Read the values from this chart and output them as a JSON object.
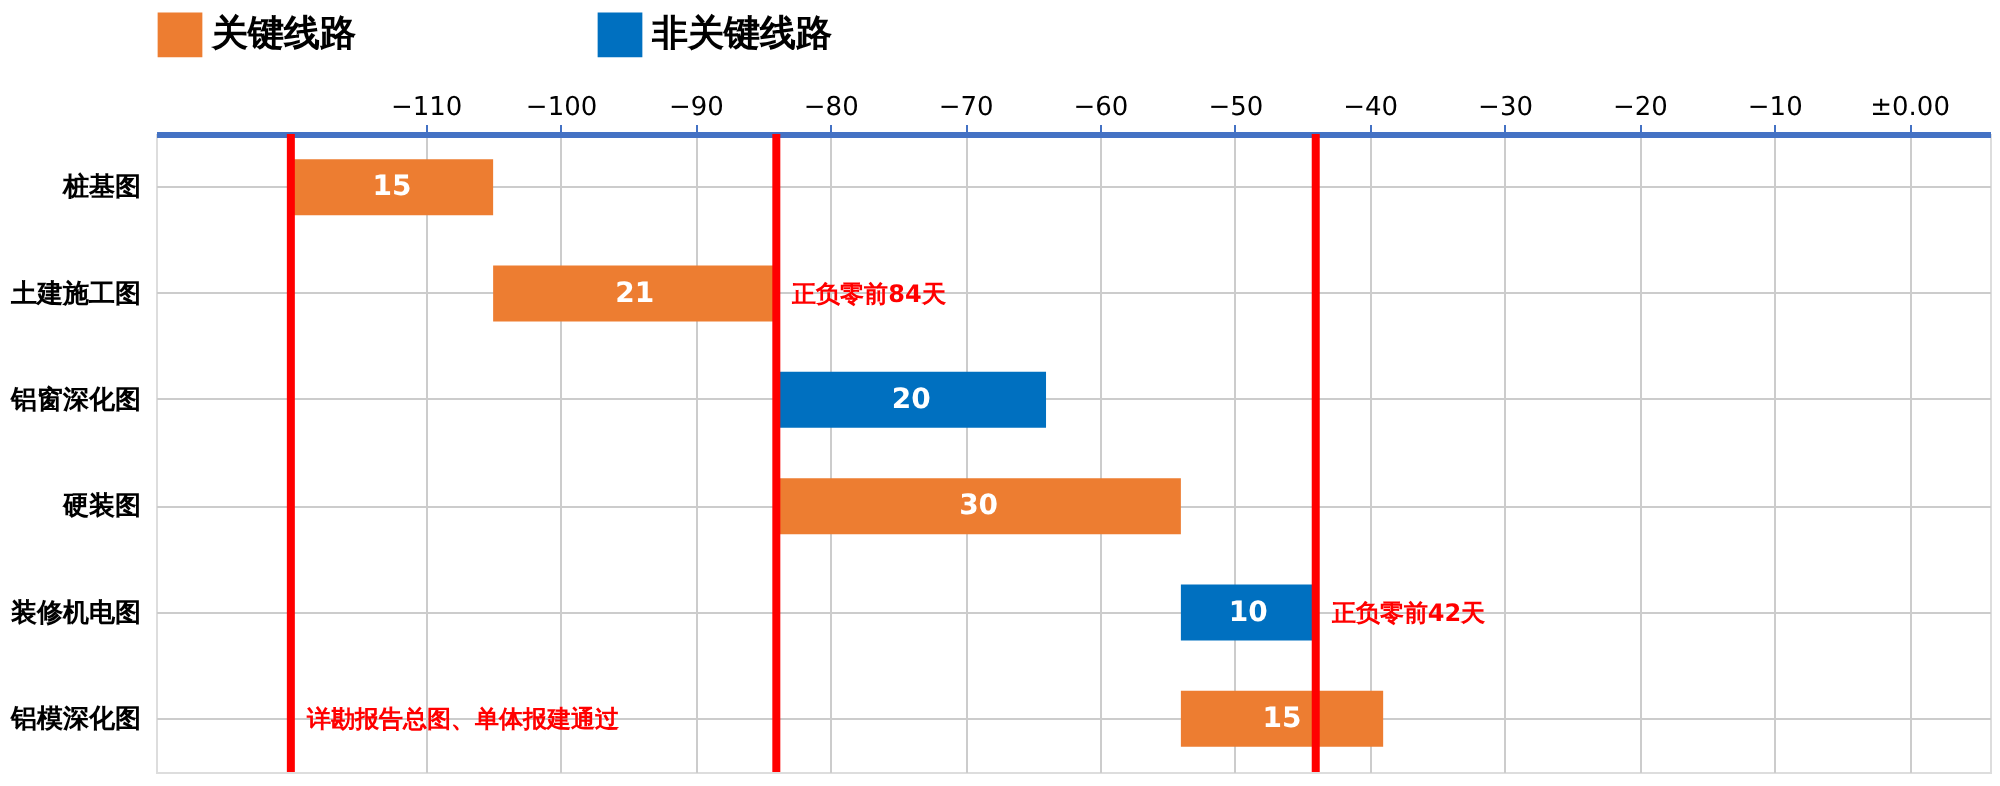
{
  "chart_data": {
    "type": "bar",
    "orientation": "horizontal",
    "categories": [
      "桩基图",
      "土建施工图",
      "铝窗深化图",
      "硬装图",
      "装修机电图",
      "铝模深化图"
    ],
    "series": [
      {
        "name": "关键线路",
        "color": "#ed7d31",
        "values": [
          15,
          21,
          null,
          30,
          null,
          15
        ],
        "base": [
          -120,
          -105,
          null,
          -84,
          null,
          -54
        ]
      },
      {
        "name": "非关键线路",
        "color": "#0070c0",
        "values": [
          null,
          null,
          20,
          null,
          10,
          null
        ],
        "base": [
          null,
          null,
          -84,
          null,
          -54,
          null
        ]
      }
    ],
    "xlim": [
      -130,
      6
    ],
    "xticks": [
      -110,
      -100,
      -90,
      -80,
      -70,
      -60,
      -50,
      -40,
      -30,
      -20,
      -10,
      {
        "value": 0,
        "label": "±0.00"
      }
    ],
    "ref_lines": [
      {
        "axis": "x",
        "value": -120,
        "label": "详勘报告总图、单体报建通过",
        "color": "#ff0000"
      },
      {
        "axis": "x",
        "value": -84,
        "label": "正负零前84天",
        "color": "#ff0000"
      },
      {
        "axis": "x",
        "value": -44,
        "label": "正负零前42天",
        "color": "#ff0000"
      }
    ],
    "data_labels": true,
    "grid": true,
    "legend": "top"
  }
}
